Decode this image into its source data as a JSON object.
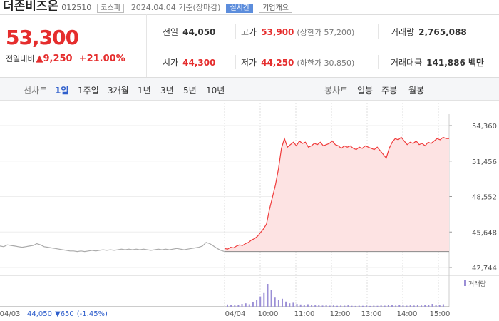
{
  "header": {
    "name": "더존비즈온",
    "code": "012510",
    "market": "코스피",
    "date": "2024.04.04 기준(장마감)",
    "realtime": "실시간",
    "company_info": "기업개요"
  },
  "quote": {
    "price": "53,300",
    "change_label": "전일대비",
    "change": "▲9,250",
    "change_rate": "+21.00%"
  },
  "info": [
    {
      "label": "전일",
      "value": "44,050"
    },
    {
      "label": "고가",
      "value": "53,900",
      "note": "(상한가 57,200)"
    },
    {
      "label": "거래량",
      "value": "2,765,088"
    },
    {
      "label": "시가",
      "value": "44,300"
    },
    {
      "label": "저가",
      "value": "44,250",
      "note": "(하한가 30,850)"
    },
    {
      "label": "거래대금",
      "value": "141,886 백만"
    }
  ],
  "tabs": {
    "line_label": "선차트",
    "periods": [
      "1일",
      "1주일",
      "3개월",
      "1년",
      "3년",
      "5년",
      "10년"
    ],
    "candle_label": "봉차트",
    "candles": [
      "일봉",
      "주봉",
      "월봉"
    ]
  },
  "chart_data": {
    "type": "line",
    "ylim": [
      42744,
      54360
    ],
    "yticks": [
      {
        "value": 54360,
        "label": "54,360"
      },
      {
        "value": 51456,
        "label": "51,456"
      },
      {
        "value": 48552,
        "label": "48,552"
      },
      {
        "value": 45648,
        "label": "45,648"
      },
      {
        "value": 42744,
        "label": "42,744"
      }
    ],
    "x_labels": [
      "04/03",
      "04/04",
      "10:00",
      "11:00",
      "12:00",
      "13:00",
      "14:00",
      "15:00"
    ],
    "baseline": 44050,
    "series": [
      {
        "color": "#aaaaaa",
        "values": [
          44500,
          44450,
          44600,
          44550,
          44500,
          44450,
          44400,
          44450,
          44500,
          44550,
          44700,
          44600,
          44450,
          44400,
          44350,
          44300,
          44250,
          44200,
          44150,
          44100,
          44100,
          44050,
          44100,
          44050,
          44100,
          44150,
          44100,
          44150,
          44200,
          44150,
          44200,
          44150,
          44200,
          44250,
          44200,
          44250,
          44200,
          44250,
          44200,
          44250,
          44200,
          44150,
          44200,
          44250,
          44200,
          44250,
          44200,
          44250,
          44300,
          44250,
          44200,
          44250,
          44300,
          44350,
          44400,
          44500,
          44800,
          44700,
          44500,
          44300,
          44150,
          44050
        ]
      },
      {
        "color": "#f03b3b",
        "fill": "#fde3e3",
        "values": [
          44300,
          44250,
          44400,
          44350,
          44500,
          44600,
          44550,
          44700,
          44800,
          45000,
          45100,
          45300,
          45600,
          45900,
          46300,
          47500,
          48500,
          49500,
          50800,
          52500,
          53300,
          52600,
          52800,
          53000,
          52700,
          53100,
          52900,
          53000,
          52600,
          52700,
          52900,
          52800,
          53000,
          52700,
          52800,
          52900,
          53100,
          52800,
          52700,
          52500,
          52700,
          52600,
          52700,
          52500,
          52400,
          52600,
          52500,
          52700,
          52600,
          52500,
          52400,
          52600,
          52300,
          52000,
          51700,
          52500,
          53000,
          53300,
          53200,
          53400,
          53100,
          52800,
          53000,
          52900,
          53100,
          52800,
          52900,
          52700,
          53000,
          52900,
          53100,
          53300,
          53200,
          53400,
          53300,
          53300
        ]
      }
    ],
    "volume": {
      "label": "거래량",
      "color": "#9b8fd6",
      "ylim": [
        0,
        200000
      ],
      "values": [
        20000,
        15000,
        12000,
        18000,
        25000,
        30000,
        22000,
        40000,
        60000,
        90000,
        120000,
        200000,
        150000,
        80000,
        60000,
        70000,
        45000,
        30000,
        35000,
        25000,
        20000,
        18000,
        22000,
        15000,
        12000,
        14000,
        10000,
        12000,
        9000,
        11000,
        8000,
        10000,
        9000,
        12000,
        8000,
        7000,
        9000,
        8000,
        10000,
        7000,
        9000,
        8000,
        11000,
        9000,
        15000,
        12000,
        10000,
        14000,
        11000,
        9000,
        12000,
        10000,
        13000,
        11000,
        15000,
        18000,
        25000,
        16000,
        14000,
        22000
      ]
    }
  },
  "footer": {
    "price": "44,050",
    "change": "▼650",
    "rate": "(-1.45%)"
  }
}
